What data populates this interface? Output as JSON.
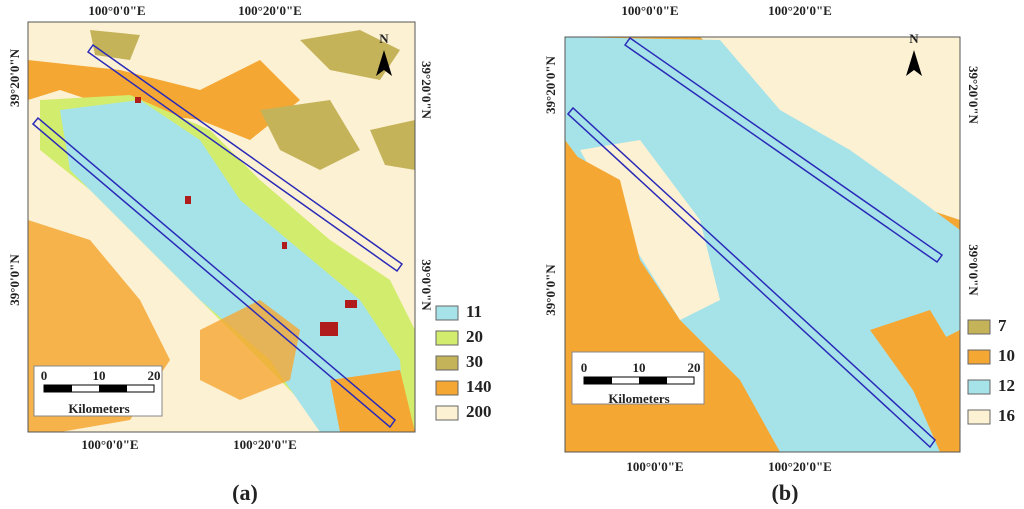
{
  "panels": [
    {
      "caption": "(a)",
      "top_labels": [
        "100°0'0\"E",
        "100°20'0\"E"
      ],
      "bottom_labels": [
        "100°0'0\"E",
        "100°20'0\"E"
      ],
      "left_labels": [
        "39°20'0\"N",
        "39°0'0\"N"
      ],
      "right_labels": [
        "39°20'0\"N",
        "39°0'0\"N"
      ],
      "north": "N",
      "scale": {
        "ticks": [
          "0",
          "10",
          "20"
        ],
        "unit": "Kilometers"
      },
      "legend": [
        {
          "label": "11",
          "color": "#a6e3e9"
        },
        {
          "label": "20",
          "color": "#d2ec6e"
        },
        {
          "label": "30",
          "color": "#c5b35a"
        },
        {
          "label": "140",
          "color": "#f5a733"
        },
        {
          "label": "200",
          "color": "#fdf1d3"
        }
      ]
    },
    {
      "caption": "(b)",
      "top_labels": [
        "100°0'0\"E",
        "100°20'0\"E"
      ],
      "bottom_labels": [
        "100°0'0\"E",
        "100°20'0\"E"
      ],
      "left_labels": [
        "39°20'0\"N",
        "39°0'0\"N"
      ],
      "right_labels": [
        "39°20'0\"N",
        "39°0'0\"N"
      ],
      "north": "N",
      "scale": {
        "ticks": [
          "0",
          "10",
          "20"
        ],
        "unit": "Kilometers"
      },
      "legend": [
        {
          "label": "7",
          "color": "#c5b35a"
        },
        {
          "label": "10",
          "color": "#f5a733"
        },
        {
          "label": "12",
          "color": "#a6e3e9"
        },
        {
          "label": "16",
          "color": "#fdf1d3"
        }
      ]
    }
  ]
}
